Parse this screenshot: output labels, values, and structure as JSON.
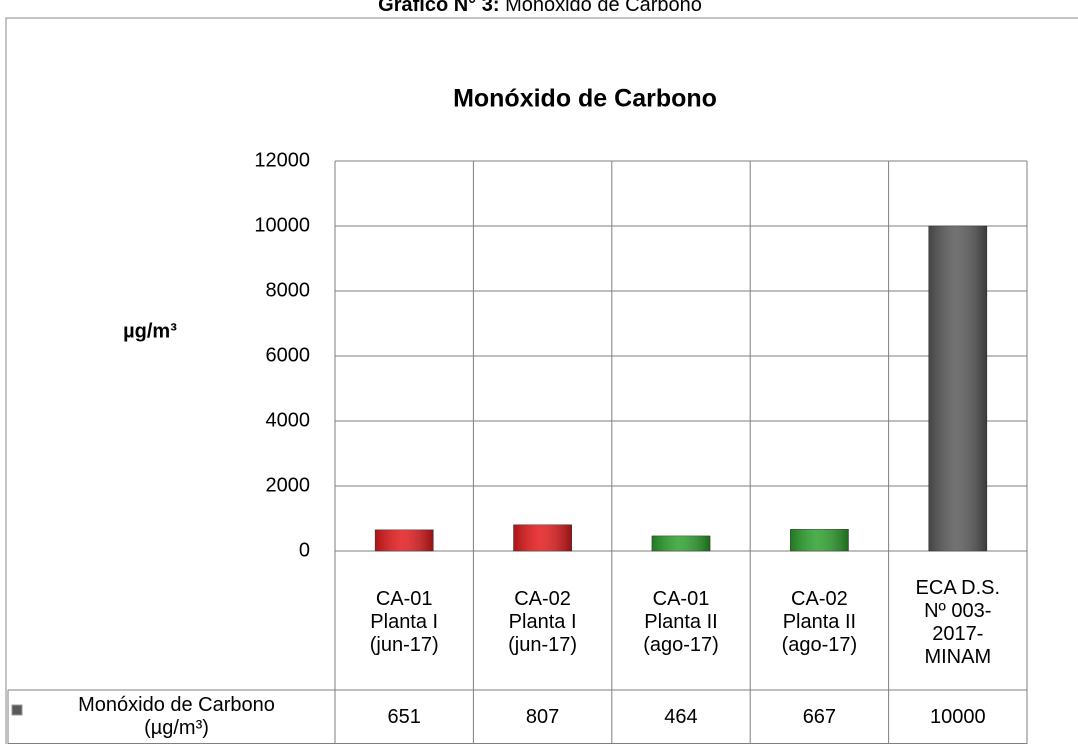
{
  "caption_label": "Gráfico N° 3:",
  "caption_text": "Monóxido de Carbono",
  "chart_data": {
    "type": "bar",
    "title": "Monóxido de Carbono",
    "y_label": "µg/m³",
    "categories": [
      "CA-01\nPlanta I\n(jun-17)",
      "CA-02\nPlanta I\n(jun-17)",
      "CA-01\nPlanta II\n(ago-17)",
      "CA-02\nPlanta II\n(ago-17)",
      "ECA D.S.\nNº 003-\n2017-\nMINAM"
    ],
    "series": [
      {
        "name": "Monóxido de Carbono\n(µg/m³)",
        "color": "#595959",
        "colors": [
          "#e41a1c",
          "#e41a1c",
          "#2ca02c",
          "#2ca02c",
          "#595959"
        ],
        "values": [
          651,
          807,
          464,
          667,
          10000
        ]
      }
    ],
    "ylim": [
      0,
      12000
    ],
    "yticks": [
      0,
      2000,
      4000,
      6000,
      8000,
      10000,
      12000
    ],
    "grid": true
  }
}
